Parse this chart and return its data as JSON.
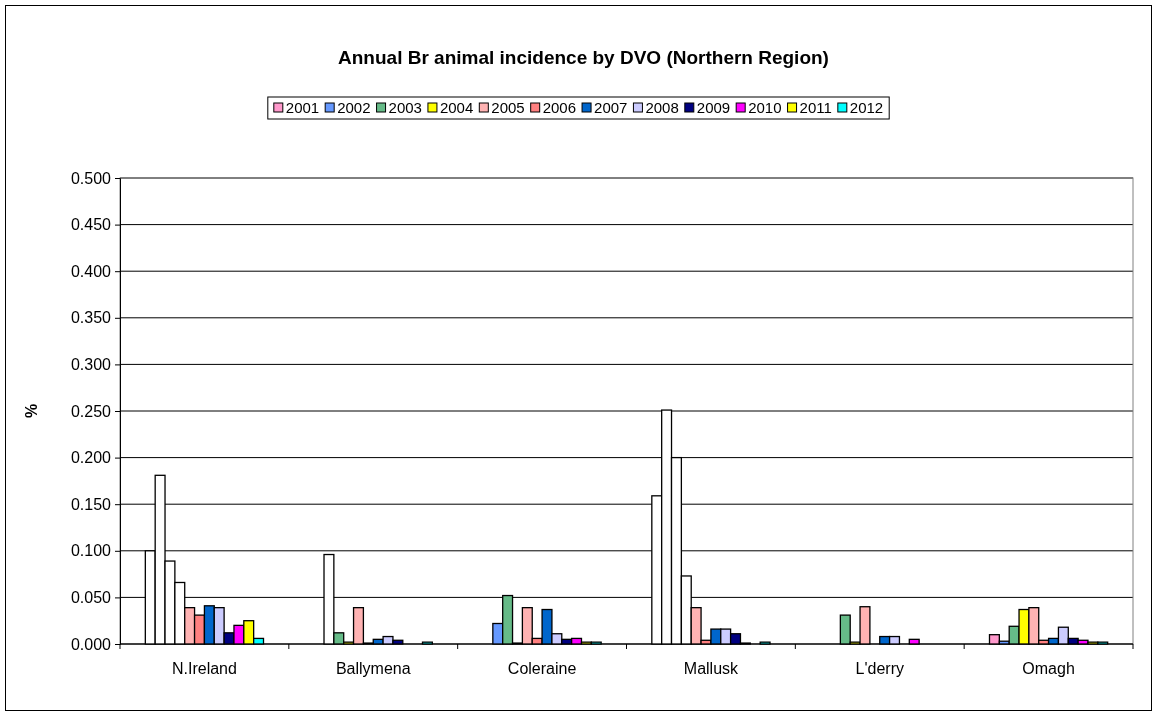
{
  "chart_data": {
    "type": "bar",
    "title": "Annual Br animal incidence by DVO (Northern Region)",
    "ylabel": "%",
    "categories": [
      "N.Ireland",
      "Ballymena",
      "Coleraine",
      "Mallusk",
      "L'derry",
      "Omagh"
    ],
    "ylim": [
      0,
      0.5
    ],
    "yticks": [
      {
        "value": 0,
        "label": "0.000"
      },
      {
        "value": 0.05,
        "label": "0.050"
      },
      {
        "value": 0.1,
        "label": "0.100"
      },
      {
        "value": 0.15,
        "label": "0.150"
      },
      {
        "value": 0.2,
        "label": "0.200"
      },
      {
        "value": 0.25,
        "label": "0.250"
      },
      {
        "value": 0.3,
        "label": "0.300"
      },
      {
        "value": 0.35,
        "label": "0.350"
      },
      {
        "value": 0.4,
        "label": "0.400"
      },
      {
        "value": 0.45,
        "label": "0.450"
      },
      {
        "value": 0.5,
        "label": "0.500"
      }
    ],
    "grid": "y",
    "legend": "top",
    "series": [
      {
        "name": "2001",
        "color": "#ff99cc",
        "colors": [
          "#ffffff",
          "#ff99cc",
          "#ff99cc",
          "#ffffff",
          "#ff99cc",
          "#ff99cc"
        ],
        "values": [
          0.1,
          0,
          0,
          0.159,
          0,
          0.01
        ]
      },
      {
        "name": "2002",
        "color": "#6699ff",
        "colors": [
          "#ffffff",
          "#ffffff",
          "#6699ff",
          "#ffffff",
          "#6699ff",
          "#6699ff"
        ],
        "values": [
          0.181,
          0.096,
          0.022,
          0.251,
          0,
          0.003
        ]
      },
      {
        "name": "2003",
        "color": "#66bb88",
        "colors": [
          "#ffffff",
          "#66bb88",
          "#66bb88",
          "#ffffff",
          "#66bb88",
          "#66bb88"
        ],
        "values": [
          0.089,
          0.012,
          0.052,
          0.2,
          0.031,
          0.019
        ]
      },
      {
        "name": "2004",
        "color": "#ffff00",
        "colors": [
          "#ffffff",
          "#ffff00",
          "#ffff00",
          "#ffffff",
          "#ffff00",
          "#ffff00"
        ],
        "values": [
          0.066,
          0.002,
          0.001,
          0.073,
          0.002,
          0.037
        ]
      },
      {
        "name": "2005",
        "color": "#ffb3b3",
        "values": [
          0.039,
          0.039,
          0.039,
          0.039,
          0.04,
          0.039
        ]
      },
      {
        "name": "2006",
        "color": "#ff8080",
        "values": [
          0.031,
          0.001,
          0.006,
          0.004,
          0,
          0.004
        ]
      },
      {
        "name": "2007",
        "color": "#0066cc",
        "values": [
          0.041,
          0.005,
          0.037,
          0.016,
          0.008,
          0.006
        ]
      },
      {
        "name": "2008",
        "color": "#ccccff",
        "values": [
          0.039,
          0.008,
          0.011,
          0.016,
          0.008,
          0.018
        ]
      },
      {
        "name": "2009",
        "color": "#000080",
        "values": [
          0.012,
          0.004,
          0.005,
          0.011,
          0,
          0.006
        ]
      },
      {
        "name": "2010",
        "color": "#ff00ff",
        "values": [
          0.02,
          0,
          0.006,
          0.001,
          0.005,
          0.004
        ]
      },
      {
        "name": "2011",
        "color": "#ffff00",
        "values": [
          0.025,
          0,
          0.002,
          0,
          0,
          0.002
        ]
      },
      {
        "name": "2012",
        "color": "#00ffff",
        "values": [
          0.006,
          0.002,
          0.002,
          0.002,
          0,
          0.002
        ]
      }
    ]
  }
}
